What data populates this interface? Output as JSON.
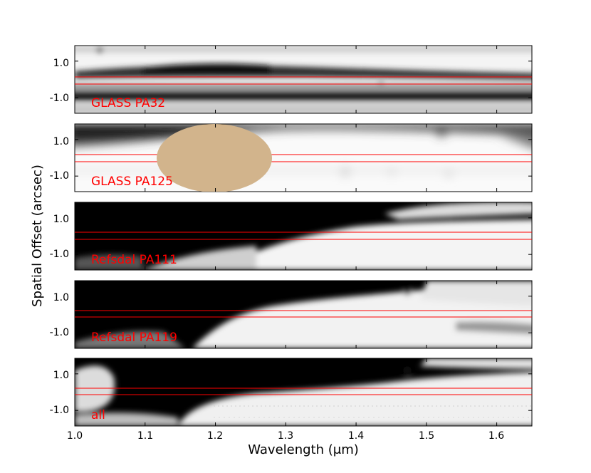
{
  "chart_data": {
    "type": "heatmap",
    "xlabel": "Wavelength (μm)",
    "ylabel": "Spatial Offset (arcsec)",
    "xlim": [
      1.0,
      1.65
    ],
    "x_ticks": [
      "1.0",
      "1.1",
      "1.2",
      "1.3",
      "1.4",
      "1.5",
      "1.6"
    ],
    "x_tick_values": [
      1.0,
      1.1,
      1.2,
      1.3,
      1.4,
      1.5,
      1.6
    ],
    "y_ticks": [
      "1.0",
      "-1.0"
    ],
    "y_tick_values": [
      1.0,
      -1.0
    ],
    "ylim": [
      -1.85,
      1.85
    ],
    "colormap": "grayscale",
    "label_color": "#ff0000",
    "extraction_window_arcsec": [
      -0.18,
      0.18
    ],
    "panels": [
      {
        "label": "GLASS PA32"
      },
      {
        "label": "GLASS PA125",
        "mask": {
          "center_x": 1.195,
          "center_y": 0.05,
          "half_width_x": 0.082,
          "half_height_y": 1.9,
          "color": "#d2b48c"
        }
      },
      {
        "label": "Refsdal PA111"
      },
      {
        "label": "Refsdal PA119"
      },
      {
        "label": "all"
      }
    ]
  }
}
